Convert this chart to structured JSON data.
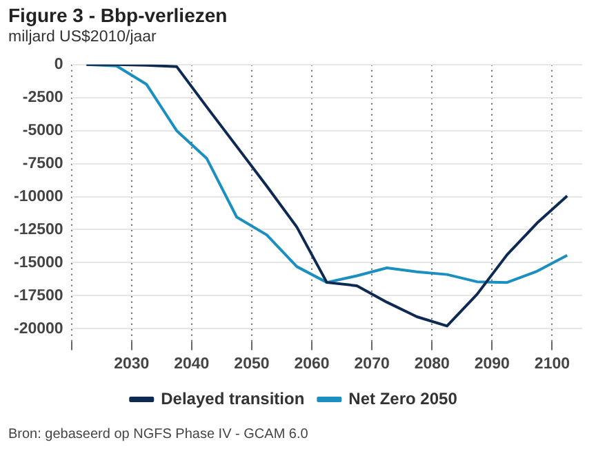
{
  "chart_data": {
    "type": "line",
    "title": "Figure 3 - Bbp-verliezen",
    "subtitle": "miljard US$2010/jaar",
    "annotations": [
      "Bron: gebaseerd op NGFS Phase IV - GCAM 6.0"
    ],
    "x": [
      2022.5,
      2027.5,
      2032.5,
      2037.5,
      2042.5,
      2047.5,
      2052.5,
      2057.5,
      2062.5,
      2067.5,
      2072.5,
      2077.5,
      2082.5,
      2087.5,
      2092.5,
      2097.5,
      2102.5
    ],
    "series": [
      {
        "name": "Delayed transition",
        "color": "#0f2a52",
        "values": [
          0,
          0,
          -50,
          -150,
          -3200,
          -6200,
          -9200,
          -12300,
          -16500,
          -16750,
          -18000,
          -19100,
          -19800,
          -17400,
          -14400,
          -12000,
          -9950
        ]
      },
      {
        "name": "Net Zero 2050",
        "color": "#1a8fc0",
        "values": [
          0,
          -100,
          -1500,
          -5000,
          -7100,
          -11550,
          -12900,
          -15300,
          -16500,
          -16000,
          -15400,
          -15700,
          -15900,
          -16450,
          -16500,
          -15650,
          -14450
        ]
      }
    ],
    "xlim": [
      2020,
      2105
    ],
    "xticks": [
      {
        "value": 2020,
        "label": null
      },
      2030,
      2040,
      2050,
      2060,
      2070,
      2080,
      2090,
      2100
    ],
    "ylim": [
      -21000,
      0
    ],
    "yticks": [
      0,
      -2500,
      -5000,
      -7500,
      -10000,
      -12500,
      -15000,
      -17500,
      -20000
    ],
    "grid": true,
    "legend": "bottom",
    "marker": "none",
    "line_style": "solid"
  }
}
